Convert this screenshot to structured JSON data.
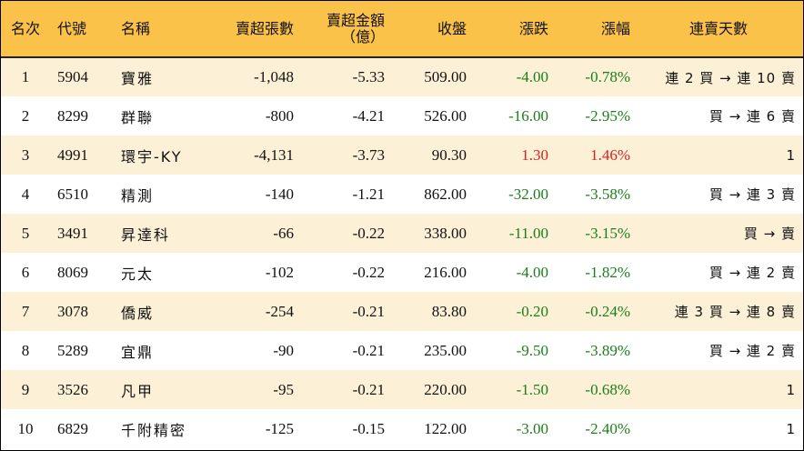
{
  "headers": {
    "rank": "名次",
    "code": "代號",
    "name": "名稱",
    "net_sell_lots": "賣超張數",
    "net_sell_amount_line1": "賣超金額",
    "net_sell_amount_line2": "（億）",
    "close": "收盤",
    "change": "漲跌",
    "change_pct": "漲幅",
    "consecutive_days": "連賣天數"
  },
  "rows": [
    {
      "rank": "1",
      "code": "5904",
      "name": "寶雅",
      "lots": "-1,048",
      "amount": "-5.33",
      "close": "509.00",
      "change": "-4.00",
      "pct": "-0.78%",
      "trend": "neg",
      "days": "連 2 買 → 連 10 賣"
    },
    {
      "rank": "2",
      "code": "8299",
      "name": "群聯",
      "lots": "-800",
      "amount": "-4.21",
      "close": "526.00",
      "change": "-16.00",
      "pct": "-2.95%",
      "trend": "neg",
      "days": "買 → 連 6 賣"
    },
    {
      "rank": "3",
      "code": "4991",
      "name": "環宇-KY",
      "lots": "-4,131",
      "amount": "-3.73",
      "close": "90.30",
      "change": "1.30",
      "pct": "1.46%",
      "trend": "pos",
      "days": "1"
    },
    {
      "rank": "4",
      "code": "6510",
      "name": "精測",
      "lots": "-140",
      "amount": "-1.21",
      "close": "862.00",
      "change": "-32.00",
      "pct": "-3.58%",
      "trend": "neg",
      "days": "買 → 連 3 賣"
    },
    {
      "rank": "5",
      "code": "3491",
      "name": "昇達科",
      "lots": "-66",
      "amount": "-0.22",
      "close": "338.00",
      "change": "-11.00",
      "pct": "-3.15%",
      "trend": "neg",
      "days": "買 → 賣"
    },
    {
      "rank": "6",
      "code": "8069",
      "name": "元太",
      "lots": "-102",
      "amount": "-0.22",
      "close": "216.00",
      "change": "-4.00",
      "pct": "-1.82%",
      "trend": "neg",
      "days": "買 → 連 2 賣"
    },
    {
      "rank": "7",
      "code": "3078",
      "name": "僑威",
      "lots": "-254",
      "amount": "-0.21",
      "close": "83.80",
      "change": "-0.20",
      "pct": "-0.24%",
      "trend": "neg",
      "days": "連 3 買 → 連 8 賣"
    },
    {
      "rank": "8",
      "code": "5289",
      "name": "宜鼎",
      "lots": "-90",
      "amount": "-0.21",
      "close": "235.00",
      "change": "-9.50",
      "pct": "-3.89%",
      "trend": "neg",
      "days": "買 → 連 2 賣"
    },
    {
      "rank": "9",
      "code": "3526",
      "name": "凡甲",
      "lots": "-95",
      "amount": "-0.21",
      "close": "220.00",
      "change": "-1.50",
      "pct": "-0.68%",
      "trend": "neg",
      "days": "1"
    },
    {
      "rank": "10",
      "code": "6829",
      "name": "千附精密",
      "lots": "-125",
      "amount": "-0.15",
      "close": "122.00",
      "change": "-3.00",
      "pct": "-2.40%",
      "trend": "neg",
      "days": "1"
    }
  ],
  "colors": {
    "header_bg": "#fbc24a",
    "odd_row_bg": "#fcf0d7",
    "even_row_bg": "#ffffff",
    "negative": "#1a7f1a",
    "positive": "#e02020"
  }
}
